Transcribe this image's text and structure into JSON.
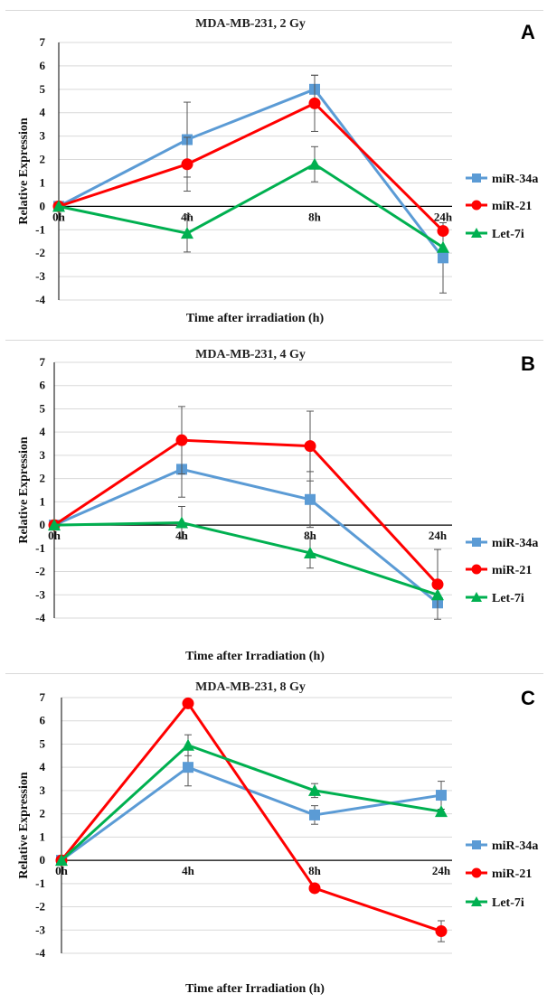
{
  "chart_data": [
    {
      "type": "line",
      "panel_letter": "A",
      "title": "MDA-MB-231, 2 Gy",
      "xlabel": "Time after irradiation (h)",
      "ylabel": "Relative Expression",
      "categories": [
        "0h",
        "4h",
        "8h",
        "24h"
      ],
      "ylim": [
        -4,
        7
      ],
      "yticks": [
        -4,
        -3,
        -2,
        -1,
        0,
        1,
        2,
        3,
        4,
        5,
        6,
        7
      ],
      "grid": true,
      "legend_position": "right",
      "series": [
        {
          "name": "miR-34a",
          "color": "#5b9bd5",
          "marker": "square",
          "values": [
            0,
            2.85,
            5.0,
            -2.2
          ],
          "err": [
            0,
            1.6,
            0.6,
            1.5
          ]
        },
        {
          "name": "miR-21",
          "color": "#ff0000",
          "marker": "circle",
          "values": [
            0,
            1.8,
            4.4,
            -1.05
          ],
          "err": [
            0,
            1.15,
            1.2,
            0
          ]
        },
        {
          "name": "Let-7i",
          "color": "#00b050",
          "marker": "triangle",
          "values": [
            0,
            -1.15,
            1.8,
            -1.75
          ],
          "err": [
            0,
            0.8,
            0.75,
            0
          ]
        }
      ]
    },
    {
      "type": "line",
      "panel_letter": "B",
      "title": "MDA-MB-231, 4 Gy",
      "xlabel": "Time after Irradiation (h)",
      "ylabel": "Relative Expression",
      "categories": [
        "0h",
        "4h",
        "8h",
        "24h"
      ],
      "ylim": [
        -4,
        7
      ],
      "yticks": [
        -4,
        -3,
        -2,
        -1,
        0,
        1,
        2,
        3,
        4,
        5,
        6,
        7
      ],
      "grid": true,
      "legend_position": "right",
      "series": [
        {
          "name": "miR-34a",
          "color": "#5b9bd5",
          "marker": "square",
          "values": [
            0,
            2.4,
            1.1,
            -3.35
          ],
          "err": [
            0,
            1.2,
            1.2,
            0
          ]
        },
        {
          "name": "miR-21",
          "color": "#ff0000",
          "marker": "circle",
          "values": [
            0,
            3.65,
            3.4,
            -2.55
          ],
          "err": [
            0,
            1.45,
            1.5,
            1.5
          ]
        },
        {
          "name": "Let-7i",
          "color": "#00b050",
          "marker": "triangle",
          "values": [
            0,
            0.1,
            -1.2,
            -3.0
          ],
          "err": [
            0,
            0.7,
            0.65,
            0
          ]
        }
      ]
    },
    {
      "type": "line",
      "panel_letter": "C",
      "title": "MDA-MB-231, 8 Gy",
      "xlabel": "Time after Irradiation (h)",
      "ylabel": "Relative Expression",
      "categories": [
        "0h",
        "4h",
        "8h",
        "24h"
      ],
      "ylim": [
        -4,
        7
      ],
      "yticks": [
        -4,
        -3,
        -2,
        -1,
        0,
        1,
        2,
        3,
        4,
        5,
        6,
        7
      ],
      "grid": true,
      "legend_position": "right",
      "series": [
        {
          "name": "miR-34a",
          "color": "#5b9bd5",
          "marker": "square",
          "values": [
            0,
            4.0,
            1.95,
            2.8
          ],
          "err": [
            0,
            0.8,
            0.4,
            0.6
          ]
        },
        {
          "name": "miR-21",
          "color": "#ff0000",
          "marker": "circle",
          "values": [
            0,
            6.75,
            -1.2,
            -3.05
          ],
          "err": [
            0,
            0,
            0,
            0.45
          ]
        },
        {
          "name": "Let-7i",
          "color": "#00b050",
          "marker": "triangle",
          "values": [
            0,
            4.95,
            3.0,
            2.1
          ],
          "err": [
            0,
            0.45,
            0.3,
            0
          ]
        }
      ]
    }
  ]
}
